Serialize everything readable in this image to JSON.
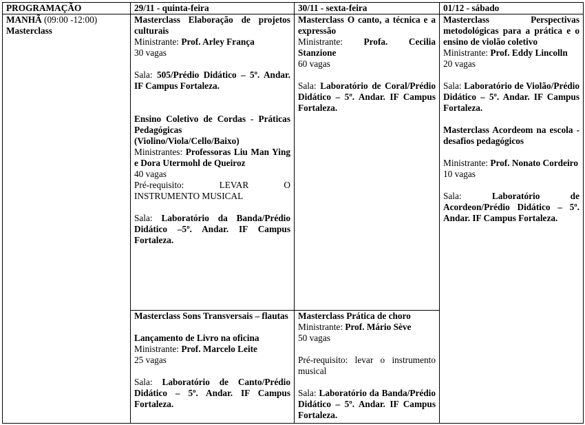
{
  "headers": [
    "PROGRAMAÇÃO",
    "29/11 - quinta-feira",
    "30/11 - sexta-feira",
    "01/12 - sábado"
  ],
  "period": {
    "label": "MANHÃ",
    "time": " (09:00 -12:00)",
    "type": "Masterclass"
  },
  "cells": {
    "thu_top": [
      [
        {
          "t": "Masterclass Elaboração de projetos culturais",
          "b": true
        }
      ],
      [
        {
          "t": "Ministrante: ",
          "b": false
        },
        {
          "t": "Prof. Arley França",
          "b": true
        }
      ],
      [
        {
          "t": "30 vagas",
          "b": false
        }
      ],
      [],
      [
        {
          "t": "Sala: ",
          "b": false
        },
        {
          "t": "505/Prédio Didático – 5º. Andar.  IF Campus Fortaleza.",
          "b": true
        }
      ],
      [],
      [],
      [
        {
          "t": "Ensino Coletivo de Cordas - Práticas Pedagógicas",
          "b": true
        }
      ],
      [
        {
          "t": "(Violino/Viola/Cello/Baixo)",
          "b": true
        }
      ],
      [
        {
          "t": "Ministrantes: ",
          "b": false
        },
        {
          "t": "Professoras Liu Man Ying e Dora Utermohl de Queiroz",
          "b": true
        }
      ],
      [
        {
          "t": "40 vagas",
          "b": false
        }
      ],
      [
        {
          "t": "Pré-requisito: LEVAR O INSTRUMENTO MUSICAL",
          "b": false
        }
      ],
      [],
      [
        {
          "t": "Sala: ",
          "b": false
        },
        {
          "t": "Laboratório da Banda/Prédio Didático –5º. Andar.  IF Campus Fortaleza.",
          "b": true
        }
      ]
    ],
    "fri_top": [
      [
        {
          "t": "Masterclass O canto, a técnica e a expressão",
          "b": true
        }
      ],
      [
        {
          "t": "Ministrante: ",
          "b": false
        },
        {
          "t": "Profa. Cecilia Stanzione",
          "b": true
        }
      ],
      [
        {
          "t": "60 vagas",
          "b": false
        }
      ],
      [],
      [
        {
          "t": "Sala: ",
          "b": false
        },
        {
          "t": "Laboratório de Coral/Prédio Didático – 5º. Andar.  IF Campus Fortaleza.",
          "b": true
        }
      ]
    ],
    "sat": [
      [
        {
          "t": "Masterclass Perspectivas metodológicas para a prática e o ensino de violão coletivo",
          "b": true
        }
      ],
      [
        {
          "t": "Ministrante: ",
          "b": false
        },
        {
          "t": "Prof. Eddy Lincolln",
          "b": true
        }
      ],
      [
        {
          "t": "20 vagas",
          "b": false
        }
      ],
      [],
      [
        {
          "t": "Sala: ",
          "b": false
        },
        {
          "t": "Laboratório de Violão/Prédio Didático – 5º. Andar.  IF Campus Fortaleza.",
          "b": true
        }
      ],
      [],
      [
        {
          "t": "Masterclass Acordeom na escola - desafios pedagógicos",
          "b": true
        }
      ],
      [],
      [
        {
          "t": "Ministrante: ",
          "b": false
        },
        {
          "t": "Prof. Nonato Cordeiro",
          "b": true
        }
      ],
      [
        {
          "t": "10 vagas",
          "b": false
        }
      ],
      [],
      [
        {
          "t": "Sala: ",
          "b": false
        },
        {
          "t": "Laboratório de Acordeon/Prédio Didático – 5º. Andar.  IF Campus Fortaleza.",
          "b": true
        }
      ]
    ],
    "thu_bottom": [
      [
        {
          "t": "Masterclass Sons Transversais – flautas",
          "b": true
        }
      ],
      [],
      [
        {
          "t": "Lançamento de Livro na oficina",
          "b": true
        }
      ],
      [
        {
          "t": "Ministrante: ",
          "b": false
        },
        {
          "t": "Prof. Marcelo Leite",
          "b": true
        }
      ],
      [
        {
          "t": "25 vagas",
          "b": false
        }
      ],
      [],
      [
        {
          "t": "Sala: ",
          "b": false
        },
        {
          "t": "Laboratório de Canto/Prédio Didático – 5º. Andar.  IF Campus Fortaleza.",
          "b": true
        }
      ]
    ],
    "fri_bottom": [
      [
        {
          "t": "Masterclass Prática de choro",
          "b": true
        }
      ],
      [
        {
          "t": "Ministrante: ",
          "b": false
        },
        {
          "t": "Prof. Mário Sève",
          "b": true
        }
      ],
      [
        {
          "t": "50 vagas",
          "b": false
        }
      ],
      [],
      [
        {
          "t": "Pré-requisito: levar o instrumento musical",
          "b": false
        }
      ],
      [],
      [
        {
          "t": "Sala: ",
          "b": false
        },
        {
          "t": "Laboratório da Banda/Prédio Didático – 5º. Andar.  IF Campus Fortaleza.",
          "b": true
        }
      ]
    ]
  }
}
